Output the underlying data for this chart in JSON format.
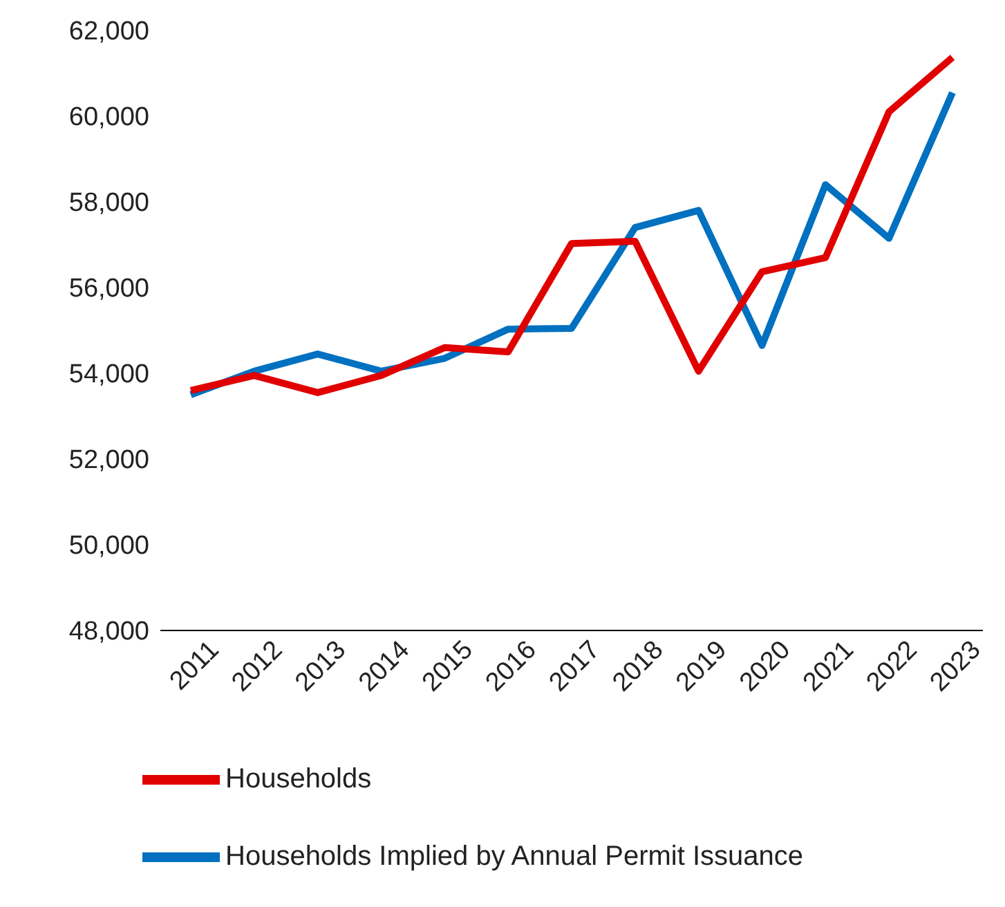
{
  "chart_data": {
    "type": "line",
    "categories": [
      "2011",
      "2012",
      "2013",
      "2014",
      "2015",
      "2016",
      "2017",
      "2018",
      "2019",
      "2020",
      "2021",
      "2022",
      "2023"
    ],
    "series": [
      {
        "name": "Households Implied by Annual Permit Issuance",
        "color": "#0070c0",
        "values": [
          53500,
          54050,
          54450,
          54050,
          54350,
          55030,
          55050,
          57400,
          57800,
          54650,
          58400,
          57150,
          60550
        ]
      },
      {
        "name": "Households",
        "color": "#e00000",
        "values": [
          53600,
          53950,
          53550,
          53950,
          54600,
          54500,
          57030,
          57080,
          54050,
          56370,
          56700,
          60100,
          61370
        ]
      }
    ],
    "ylim": [
      48000,
      62000
    ],
    "yticks": [
      {
        "value": 48000,
        "label": "48,000"
      },
      {
        "value": 50000,
        "label": "50,000"
      },
      {
        "value": 52000,
        "label": "52,000"
      },
      {
        "value": 54000,
        "label": "54,000"
      },
      {
        "value": 56000,
        "label": "56,000"
      },
      {
        "value": 58000,
        "label": "58,000"
      },
      {
        "value": 60000,
        "label": "60,000"
      },
      {
        "value": 62000,
        "label": "62,000"
      }
    ],
    "grid": false,
    "legend": "bottom",
    "marker": "none",
    "line_style": "solid"
  }
}
